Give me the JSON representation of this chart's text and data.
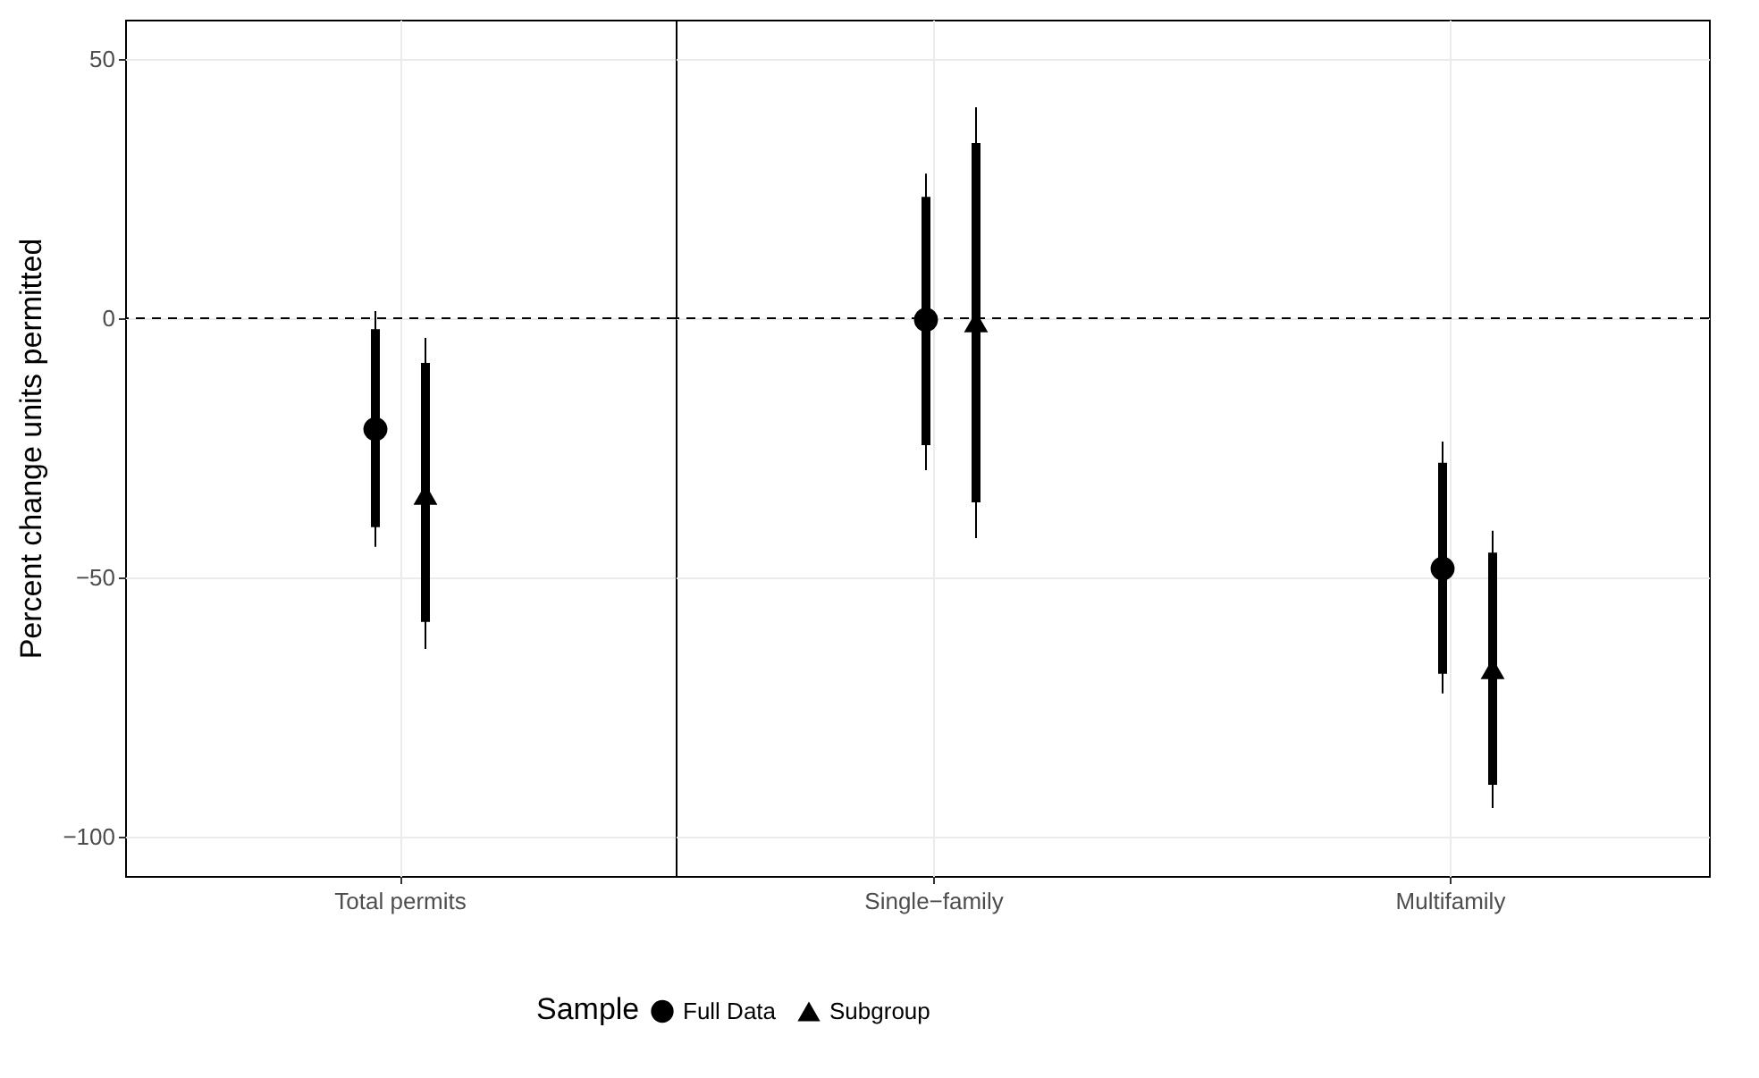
{
  "chart_data": [
    {
      "type": "scatter",
      "categories": [
        "Total permits"
      ],
      "ylabel": "Percent change units permitted",
      "ylim": [
        -107.6,
        57.6
      ],
      "yticks": [
        50,
        0,
        -50,
        -100
      ],
      "grid": true,
      "legend": "bottom",
      "legend_title": "Sample",
      "ref_lines": [
        {
          "axis": "y",
          "value": 0,
          "line_style": "dashed",
          "color": "#000000"
        }
      ],
      "series": [
        {
          "name": "Full Data",
          "color": "#000000",
          "marker": "circle",
          "values": [
            -21.4
          ],
          "errors": [
            [
              -44.1,
              1.4
            ]
          ]
        },
        {
          "name": "Subgroup",
          "color": "#000000",
          "marker": "triangle",
          "values": [
            -34
          ],
          "errors": [
            [
              -63.8,
              -3.8
            ]
          ]
        },
        {
          "type": "bar",
          "color": "#000000",
          "base": [
            -40.3
          ],
          "values": [
            38.2
          ]
        },
        {
          "type": "bar",
          "color": "#000000",
          "base": [
            -58.6
          ],
          "values": [
            50
          ]
        }
      ]
    },
    {
      "type": "scatter",
      "categories": [
        "Single−family",
        "Multifamily"
      ],
      "ylim": [
        -107.6,
        57.6
      ],
      "yticks": [
        50,
        0,
        -50,
        -100
      ],
      "grid": true,
      "tick_labels": "x",
      "ref_lines": [
        {
          "axis": "y",
          "value": 0,
          "line_style": "dashed",
          "color": "#000000"
        }
      ],
      "series": [
        {
          "color": "#000000",
          "marker": "circle",
          "values": [
            -0.3,
            -48.3
          ],
          "errors": [
            [
              -29.3,
              27.9
            ],
            [
              -72.4,
              -23.8
            ]
          ]
        },
        {
          "color": "#000000",
          "marker": "triangle",
          "values": [
            -0.7,
            -67.6
          ],
          "errors": [
            [
              -42.4,
              40.7
            ],
            [
              -94.5,
              -41
            ]
          ]
        },
        {
          "type": "bar",
          "color": "#000000",
          "base": [
            -24.5,
            -68.6
          ],
          "values": [
            47.9,
            40.7
          ]
        },
        {
          "type": "bar",
          "color": "#000000",
          "base": [
            -35.5,
            -90
          ],
          "values": [
            69.3,
            44.8
          ]
        }
      ]
    }
  ]
}
